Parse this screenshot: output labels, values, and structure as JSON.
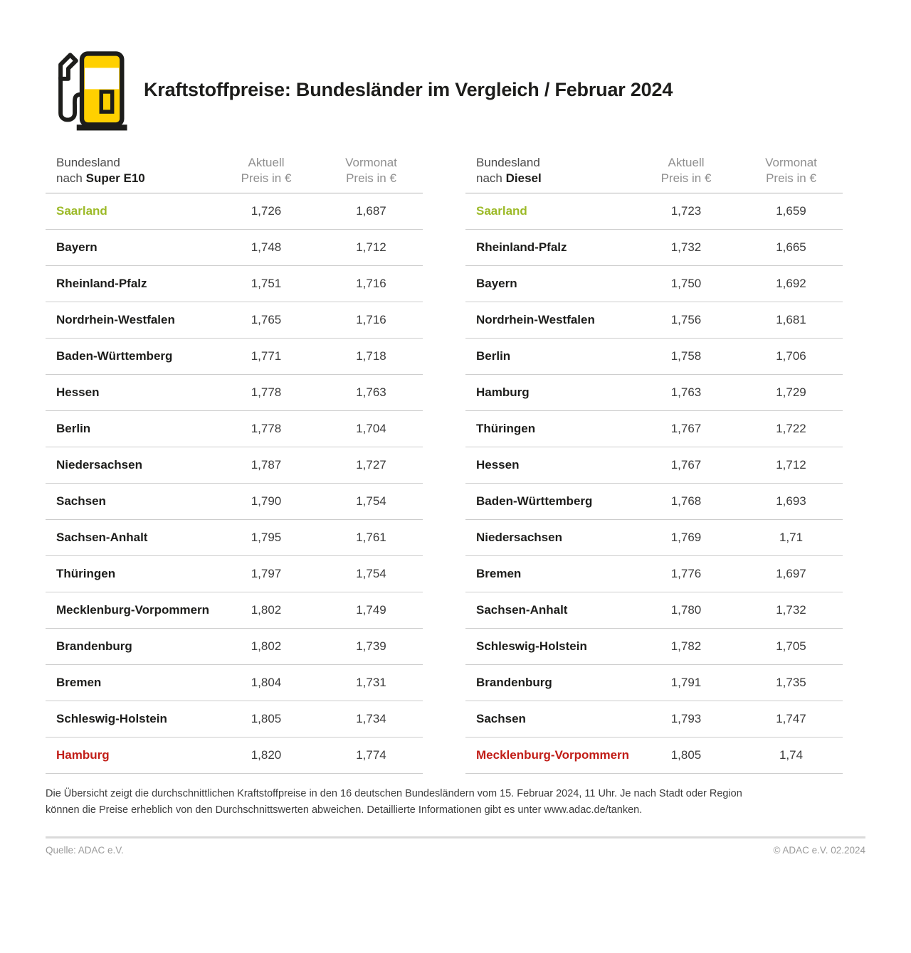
{
  "header": {
    "title": "Kraftstoffpreise: Bundesländer im Vergleich / Februar 2024",
    "icon": "fuel-pump-icon"
  },
  "colors": {
    "yellow": "#ffd000",
    "green": "#9cba27",
    "red": "#c11d17",
    "dark": "#1d1d1b"
  },
  "tables": [
    {
      "header": {
        "state": "Bundesland",
        "nach": "nach",
        "fuel": "Super E10",
        "aktuell": "Aktuell",
        "vormonat": "Vormonat",
        "unit": "Preis in €"
      },
      "rows": [
        {
          "name": "Saarland",
          "aktuell": "1,726",
          "vormonat": "1,687",
          "highlight": "green"
        },
        {
          "name": "Bayern",
          "aktuell": "1,748",
          "vormonat": "1,712"
        },
        {
          "name": "Rheinland-Pfalz",
          "aktuell": "1,751",
          "vormonat": "1,716"
        },
        {
          "name": "Nordrhein-Westfalen",
          "aktuell": "1,765",
          "vormonat": "1,716"
        },
        {
          "name": "Baden-Württemberg",
          "aktuell": "1,771",
          "vormonat": "1,718"
        },
        {
          "name": "Hessen",
          "aktuell": "1,778",
          "vormonat": "1,763"
        },
        {
          "name": "Berlin",
          "aktuell": "1,778",
          "vormonat": "1,704"
        },
        {
          "name": "Niedersachsen",
          "aktuell": "1,787",
          "vormonat": "1,727"
        },
        {
          "name": "Sachsen",
          "aktuell": "1,790",
          "vormonat": "1,754"
        },
        {
          "name": "Sachsen-Anhalt",
          "aktuell": "1,795",
          "vormonat": "1,761"
        },
        {
          "name": "Thüringen",
          "aktuell": "1,797",
          "vormonat": "1,754"
        },
        {
          "name": "Mecklenburg-Vorpommern",
          "aktuell": "1,802",
          "vormonat": "1,749"
        },
        {
          "name": "Brandenburg",
          "aktuell": "1,802",
          "vormonat": "1,739"
        },
        {
          "name": "Bremen",
          "aktuell": "1,804",
          "vormonat": "1,731"
        },
        {
          "name": "Schleswig-Holstein",
          "aktuell": "1,805",
          "vormonat": "1,734"
        },
        {
          "name": "Hamburg",
          "aktuell": "1,820",
          "vormonat": "1,774",
          "highlight": "red"
        }
      ]
    },
    {
      "header": {
        "state": "Bundesland",
        "nach": "nach",
        "fuel": "Diesel",
        "aktuell": "Aktuell",
        "vormonat": "Vormonat",
        "unit": "Preis in €"
      },
      "rows": [
        {
          "name": "Saarland",
          "aktuell": "1,723",
          "vormonat": "1,659",
          "highlight": "green"
        },
        {
          "name": "Rheinland-Pfalz",
          "aktuell": "1,732",
          "vormonat": "1,665"
        },
        {
          "name": "Bayern",
          "aktuell": "1,750",
          "vormonat": "1,692"
        },
        {
          "name": "Nordrhein-Westfalen",
          "aktuell": "1,756",
          "vormonat": "1,681"
        },
        {
          "name": "Berlin",
          "aktuell": "1,758",
          "vormonat": "1,706"
        },
        {
          "name": "Hamburg",
          "aktuell": "1,763",
          "vormonat": "1,729"
        },
        {
          "name": "Thüringen",
          "aktuell": "1,767",
          "vormonat": "1,722"
        },
        {
          "name": "Hessen",
          "aktuell": "1,767",
          "vormonat": "1,712"
        },
        {
          "name": "Baden-Württemberg",
          "aktuell": "1,768",
          "vormonat": "1,693"
        },
        {
          "name": "Niedersachsen",
          "aktuell": "1,769",
          "vormonat": "1,71"
        },
        {
          "name": "Bremen",
          "aktuell": "1,776",
          "vormonat": "1,697"
        },
        {
          "name": "Sachsen-Anhalt",
          "aktuell": "1,780",
          "vormonat": "1,732"
        },
        {
          "name": "Schleswig-Holstein",
          "aktuell": "1,782",
          "vormonat": "1,705"
        },
        {
          "name": "Brandenburg",
          "aktuell": "1,791",
          "vormonat": "1,735"
        },
        {
          "name": "Sachsen",
          "aktuell": "1,793",
          "vormonat": "1,747"
        },
        {
          "name": "Mecklenburg-Vorpommern",
          "aktuell": "1,805",
          "vormonat": "1,74",
          "highlight": "red"
        }
      ]
    }
  ],
  "chart_data": [
    {
      "type": "table",
      "title": "Bundesland nach Super E10",
      "columns": [
        "Bundesland",
        "Aktuell Preis in €",
        "Vormonat Preis in €"
      ],
      "rows": [
        [
          "Saarland",
          1.726,
          1.687
        ],
        [
          "Bayern",
          1.748,
          1.712
        ],
        [
          "Rheinland-Pfalz",
          1.751,
          1.716
        ],
        [
          "Nordrhein-Westfalen",
          1.765,
          1.716
        ],
        [
          "Baden-Württemberg",
          1.771,
          1.718
        ],
        [
          "Hessen",
          1.778,
          1.763
        ],
        [
          "Berlin",
          1.778,
          1.704
        ],
        [
          "Niedersachsen",
          1.787,
          1.727
        ],
        [
          "Sachsen",
          1.79,
          1.754
        ],
        [
          "Sachsen-Anhalt",
          1.795,
          1.761
        ],
        [
          "Thüringen",
          1.797,
          1.754
        ],
        [
          "Mecklenburg-Vorpommern",
          1.802,
          1.749
        ],
        [
          "Brandenburg",
          1.802,
          1.739
        ],
        [
          "Bremen",
          1.804,
          1.731
        ],
        [
          "Schleswig-Holstein",
          1.805,
          1.734
        ],
        [
          "Hamburg",
          1.82,
          1.774
        ]
      ],
      "notes": "cheapest row (Saarland) green, most expensive row (Hamburg) red"
    },
    {
      "type": "table",
      "title": "Bundesland nach Diesel",
      "columns": [
        "Bundesland",
        "Aktuell Preis in €",
        "Vormonat Preis in €"
      ],
      "rows": [
        [
          "Saarland",
          1.723,
          1.659
        ],
        [
          "Rheinland-Pfalz",
          1.732,
          1.665
        ],
        [
          "Bayern",
          1.75,
          1.692
        ],
        [
          "Nordrhein-Westfalen",
          1.756,
          1.681
        ],
        [
          "Berlin",
          1.758,
          1.706
        ],
        [
          "Hamburg",
          1.763,
          1.729
        ],
        [
          "Thüringen",
          1.767,
          1.722
        ],
        [
          "Hessen",
          1.767,
          1.712
        ],
        [
          "Baden-Württemberg",
          1.768,
          1.693
        ],
        [
          "Niedersachsen",
          1.769,
          1.71
        ],
        [
          "Bremen",
          1.776,
          1.697
        ],
        [
          "Sachsen-Anhalt",
          1.78,
          1.732
        ],
        [
          "Schleswig-Holstein",
          1.782,
          1.705
        ],
        [
          "Brandenburg",
          1.791,
          1.735
        ],
        [
          "Sachsen",
          1.793,
          1.747
        ],
        [
          "Mecklenburg-Vorpommern",
          1.805,
          1.74
        ]
      ],
      "notes": "cheapest row (Saarland) green, most expensive row (Mecklenburg-Vorpommern) red"
    }
  ],
  "footnote": "Die Übersicht zeigt die durchschnittlichen Kraftstoffpreise in den 16 deutschen Bundesländern vom 15. Februar 2024, 11 Uhr. Je nach Stadt oder Region können die Preise erheblich von den Durchschnittswerten abweichen. Detaillierte Informationen gibt es unter www.adac.de/tanken.",
  "footer": {
    "source": "Quelle: ADAC e.V.",
    "copyright": "© ADAC e.V. 02.2024"
  }
}
